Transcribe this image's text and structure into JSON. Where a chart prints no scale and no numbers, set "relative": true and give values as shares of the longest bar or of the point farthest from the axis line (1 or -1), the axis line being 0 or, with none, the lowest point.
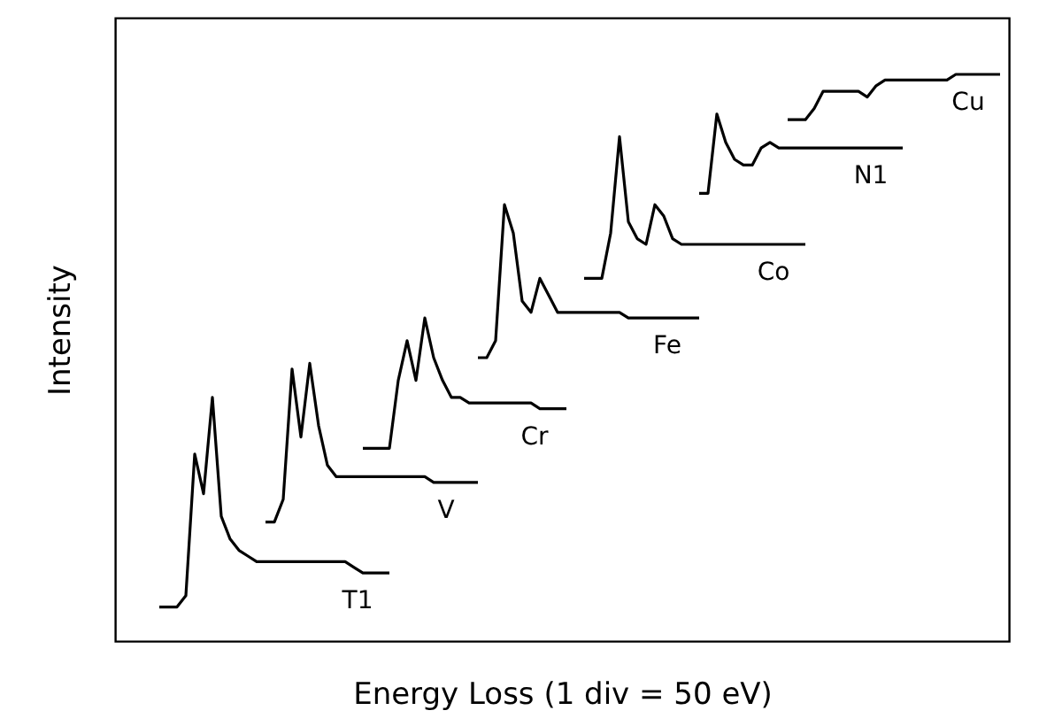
{
  "chart_data": {
    "type": "line",
    "relative": true,
    "xlabel": "Energy Loss (1 div = 50 eV)",
    "ylabel": "Intensity",
    "tick_labels": false,
    "grid": false,
    "marker": "none",
    "line_style": "solid",
    "categories": [
      null,
      null,
      null,
      null,
      null,
      null,
      null,
      null,
      null,
      null,
      null,
      null,
      null,
      null,
      null,
      null,
      null,
      null,
      null,
      null,
      null,
      null,
      null,
      null,
      null,
      null,
      null,
      null,
      null,
      null,
      null,
      null,
      null,
      null,
      null,
      null,
      null,
      null,
      null,
      null,
      null,
      null,
      null,
      null,
      null,
      null,
      null,
      null,
      null,
      null,
      null,
      null,
      null,
      null,
      null,
      null,
      null,
      null,
      null,
      null,
      null,
      null,
      null,
      null,
      null,
      null,
      null,
      null,
      null,
      null,
      null,
      null,
      null,
      null,
      null,
      null,
      null,
      null,
      null,
      null,
      null,
      null,
      null,
      null,
      null,
      null,
      null,
      null,
      null,
      null,
      null,
      null,
      null,
      null,
      null,
      null,
      null,
      null,
      null,
      null,
      null,
      null
    ],
    "series": [
      {
        "name": "T1",
        "color": "#000000",
        "values": [
          null,
          null,
          null,
          null,
          null,
          0.06,
          0.06,
          0.06,
          0.08,
          0.33,
          0.26,
          0.43,
          0.22,
          0.18,
          0.16,
          0.15,
          0.14,
          0.14,
          0.14,
          0.14,
          0.14,
          0.14,
          0.14,
          0.14,
          0.14,
          0.14,
          0.14,
          0.13,
          0.12,
          0.12,
          0.12,
          0.12,
          null,
          null,
          null,
          null,
          null,
          null,
          null,
          null,
          null,
          null,
          null,
          null,
          null,
          null,
          null,
          null,
          null,
          null,
          null,
          null,
          null,
          null,
          null,
          null,
          null,
          null,
          null,
          null,
          null,
          null,
          null,
          null,
          null,
          null,
          null,
          null,
          null,
          null,
          null,
          null,
          null,
          null,
          null,
          null,
          null,
          null,
          null,
          null,
          null,
          null,
          null,
          null,
          null,
          null,
          null,
          null,
          null,
          null,
          null,
          null,
          null,
          null,
          null,
          null,
          null,
          null,
          null,
          null,
          null,
          null
        ]
      },
      {
        "name": "V",
        "color": "#000000",
        "values": [
          null,
          null,
          null,
          null,
          null,
          null,
          null,
          null,
          null,
          null,
          null,
          null,
          null,
          null,
          null,
          null,
          null,
          0.21,
          0.21,
          0.25,
          0.48,
          0.36,
          0.49,
          0.38,
          0.31,
          0.29,
          0.29,
          0.29,
          0.29,
          0.29,
          0.29,
          0.29,
          0.29,
          0.29,
          0.29,
          0.29,
          0.28,
          0.28,
          0.28,
          0.28,
          0.28,
          0.28,
          null,
          null,
          null,
          null,
          null,
          null,
          null,
          null,
          null,
          null,
          null,
          null,
          null,
          null,
          null,
          null,
          null,
          null,
          null,
          null,
          null,
          null,
          null,
          null,
          null,
          null,
          null,
          null,
          null,
          null,
          null,
          null,
          null,
          null,
          null,
          null,
          null,
          null,
          null,
          null,
          null,
          null,
          null,
          null,
          null,
          null,
          null,
          null,
          null,
          null,
          null,
          null,
          null,
          null,
          null,
          null,
          null,
          null,
          null,
          null
        ]
      },
      {
        "name": "Cr",
        "color": "#000000",
        "values": [
          null,
          null,
          null,
          null,
          null,
          null,
          null,
          null,
          null,
          null,
          null,
          null,
          null,
          null,
          null,
          null,
          null,
          null,
          null,
          null,
          null,
          null,
          null,
          null,
          null,
          null,
          null,
          null,
          0.34,
          0.34,
          0.34,
          0.34,
          0.46,
          0.53,
          0.46,
          0.57,
          0.5,
          0.46,
          0.43,
          0.43,
          0.42,
          0.42,
          0.42,
          0.42,
          0.42,
          0.42,
          0.42,
          0.42,
          0.41,
          0.41,
          0.41,
          0.41,
          null,
          null,
          null,
          null,
          null,
          null,
          null,
          null,
          null,
          null,
          null,
          null,
          null,
          null,
          null,
          null,
          null,
          null,
          null,
          null,
          null,
          null,
          null,
          null,
          null,
          null,
          null,
          null,
          null,
          null,
          null,
          null,
          null,
          null,
          null,
          null,
          null,
          null,
          null,
          null,
          null,
          null,
          null,
          null,
          null,
          null,
          null,
          null,
          null,
          null
        ]
      },
      {
        "name": "Fe",
        "color": "#000000",
        "values": [
          null,
          null,
          null,
          null,
          null,
          null,
          null,
          null,
          null,
          null,
          null,
          null,
          null,
          null,
          null,
          null,
          null,
          null,
          null,
          null,
          null,
          null,
          null,
          null,
          null,
          null,
          null,
          null,
          null,
          null,
          null,
          null,
          null,
          null,
          null,
          null,
          null,
          null,
          null,
          null,
          null,
          0.5,
          0.5,
          0.53,
          0.77,
          0.72,
          0.6,
          0.58,
          0.64,
          0.61,
          0.58,
          0.58,
          0.58,
          0.58,
          0.58,
          0.58,
          0.58,
          0.58,
          0.57,
          0.57,
          0.57,
          0.57,
          0.57,
          0.57,
          0.57,
          0.57,
          0.57,
          null,
          null,
          null,
          null,
          null,
          null,
          null,
          null,
          null,
          null,
          null,
          null,
          null,
          null,
          null,
          null,
          null,
          null,
          null,
          null,
          null,
          null,
          null,
          null,
          null,
          null,
          null,
          null,
          null,
          null,
          null,
          null,
          null,
          null,
          null
        ]
      },
      {
        "name": "Co",
        "color": "#000000",
        "values": [
          null,
          null,
          null,
          null,
          null,
          null,
          null,
          null,
          null,
          null,
          null,
          null,
          null,
          null,
          null,
          null,
          null,
          null,
          null,
          null,
          null,
          null,
          null,
          null,
          null,
          null,
          null,
          null,
          null,
          null,
          null,
          null,
          null,
          null,
          null,
          null,
          null,
          null,
          null,
          null,
          null,
          null,
          null,
          null,
          null,
          null,
          null,
          null,
          null,
          null,
          null,
          null,
          null,
          0.64,
          0.64,
          0.64,
          0.72,
          0.89,
          0.74,
          0.71,
          0.7,
          0.77,
          0.75,
          0.71,
          0.7,
          0.7,
          0.7,
          0.7,
          0.7,
          0.7,
          0.7,
          0.7,
          0.7,
          0.7,
          0.7,
          0.7,
          0.7,
          0.7,
          0.7,
          null,
          null,
          null,
          null,
          null,
          null,
          null,
          null,
          null,
          null,
          null,
          null,
          null,
          null,
          null,
          null,
          null,
          null,
          null,
          null,
          null,
          null,
          null
        ]
      },
      {
        "name": "N1",
        "color": "#000000",
        "values": [
          null,
          null,
          null,
          null,
          null,
          null,
          null,
          null,
          null,
          null,
          null,
          null,
          null,
          null,
          null,
          null,
          null,
          null,
          null,
          null,
          null,
          null,
          null,
          null,
          null,
          null,
          null,
          null,
          null,
          null,
          null,
          null,
          null,
          null,
          null,
          null,
          null,
          null,
          null,
          null,
          null,
          null,
          null,
          null,
          null,
          null,
          null,
          null,
          null,
          null,
          null,
          null,
          null,
          null,
          null,
          null,
          null,
          null,
          null,
          null,
          null,
          null,
          null,
          null,
          null,
          null,
          0.79,
          0.79,
          0.93,
          0.88,
          0.85,
          0.84,
          0.84,
          0.87,
          0.88,
          0.87,
          0.87,
          0.87,
          0.87,
          0.87,
          0.87,
          0.87,
          0.87,
          0.87,
          0.87,
          0.87,
          0.87,
          0.87,
          0.87,
          0.87,
          null,
          null,
          null,
          null,
          null,
          null,
          null,
          null,
          null,
          null,
          null,
          null
        ]
      },
      {
        "name": "Cu",
        "color": "#000000",
        "values": [
          null,
          null,
          null,
          null,
          null,
          null,
          null,
          null,
          null,
          null,
          null,
          null,
          null,
          null,
          null,
          null,
          null,
          null,
          null,
          null,
          null,
          null,
          null,
          null,
          null,
          null,
          null,
          null,
          null,
          null,
          null,
          null,
          null,
          null,
          null,
          null,
          null,
          null,
          null,
          null,
          null,
          null,
          null,
          null,
          null,
          null,
          null,
          null,
          null,
          null,
          null,
          null,
          null,
          null,
          null,
          null,
          null,
          null,
          null,
          null,
          null,
          null,
          null,
          null,
          null,
          null,
          null,
          null,
          null,
          null,
          null,
          null,
          null,
          null,
          null,
          null,
          0.92,
          0.92,
          0.92,
          0.94,
          0.97,
          0.97,
          0.97,
          0.97,
          0.97,
          0.96,
          0.98,
          0.99,
          0.99,
          0.99,
          0.99,
          0.99,
          0.99,
          0.99,
          0.99,
          1.0,
          1.0,
          1.0,
          1.0,
          1.0,
          1.0,
          null
        ]
      }
    ]
  }
}
